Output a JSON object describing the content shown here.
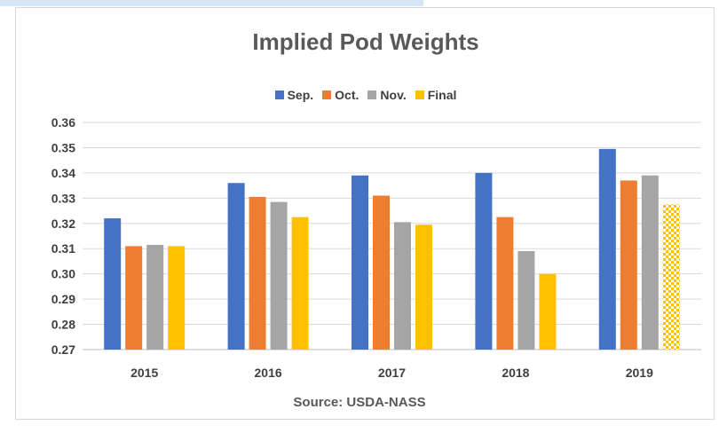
{
  "chart_data": {
    "type": "bar",
    "title": "Implied Pod Weights",
    "categories": [
      "2015",
      "2016",
      "2017",
      "2018",
      "2019"
    ],
    "series": [
      {
        "name": "Sep.",
        "color": "#4472c4",
        "values": [
          0.322,
          0.336,
          0.339,
          0.34,
          0.3495
        ]
      },
      {
        "name": "Oct.",
        "color": "#ed7d31",
        "values": [
          0.311,
          0.3305,
          0.331,
          0.3225,
          0.337
        ]
      },
      {
        "name": "Nov.",
        "color": "#a5a5a5",
        "values": [
          0.3115,
          0.3285,
          0.3205,
          0.309,
          0.339
        ]
      },
      {
        "name": "Final",
        "color": "#ffc000",
        "values": [
          0.311,
          0.3225,
          0.3195,
          0.3,
          0.3275
        ]
      }
    ],
    "patterned_bar": {
      "series": "Final",
      "category": "2019",
      "pattern": "checkerboard"
    },
    "ylim": [
      0.27,
      0.36
    ],
    "yticks": [
      "0.27",
      "0.28",
      "0.29",
      "0.30",
      "0.31",
      "0.32",
      "0.33",
      "0.34",
      "0.35",
      "0.36"
    ],
    "grid": true,
    "legend_position": "top-center",
    "xlabel": "Source: USDA-NASS",
    "ylabel": ""
  }
}
